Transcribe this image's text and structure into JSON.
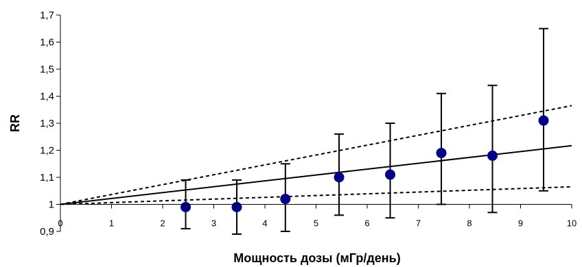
{
  "chart_data": {
    "type": "scatter",
    "title": "",
    "xlabel": "Мощность дозы (мГр/день)",
    "ylabel": "RR",
    "xlim": [
      0,
      10
    ],
    "ylim": [
      0.9,
      1.7
    ],
    "x_ticks": [
      "0",
      "1",
      "2",
      "3",
      "4",
      "5",
      "6",
      "7",
      "8",
      "9",
      "10"
    ],
    "y_ticks": [
      "0,9",
      "1",
      "1,1",
      "1,2",
      "1,3",
      "1,4",
      "1,5",
      "1,6",
      "1,7"
    ],
    "grid": false,
    "legend": "none",
    "colors": {
      "points": "#00008B",
      "lines": "#000000"
    },
    "points": [
      {
        "x": 2.45,
        "y": 0.99,
        "lower": 0.91,
        "upper": 1.09
      },
      {
        "x": 3.45,
        "y": 0.99,
        "lower": 0.89,
        "upper": 1.09
      },
      {
        "x": 4.4,
        "y": 1.02,
        "lower": 0.9,
        "upper": 1.15
      },
      {
        "x": 5.45,
        "y": 1.1,
        "lower": 0.96,
        "upper": 1.26
      },
      {
        "x": 6.45,
        "y": 1.11,
        "lower": 0.95,
        "upper": 1.3
      },
      {
        "x": 7.45,
        "y": 1.19,
        "lower": 1.0,
        "upper": 1.41
      },
      {
        "x": 8.45,
        "y": 1.18,
        "lower": 0.97,
        "upper": 1.44
      },
      {
        "x": 9.45,
        "y": 1.31,
        "lower": 1.05,
        "upper": 1.65
      }
    ],
    "lines": [
      {
        "style": "solid",
        "x": [
          0,
          10
        ],
        "y": [
          1,
          1.217
        ]
      },
      {
        "style": "dashed",
        "x": [
          0,
          10
        ],
        "y": [
          1,
          1.365
        ]
      },
      {
        "style": "dashed",
        "x": [
          0,
          10
        ],
        "y": [
          1,
          1.065
        ]
      }
    ]
  }
}
